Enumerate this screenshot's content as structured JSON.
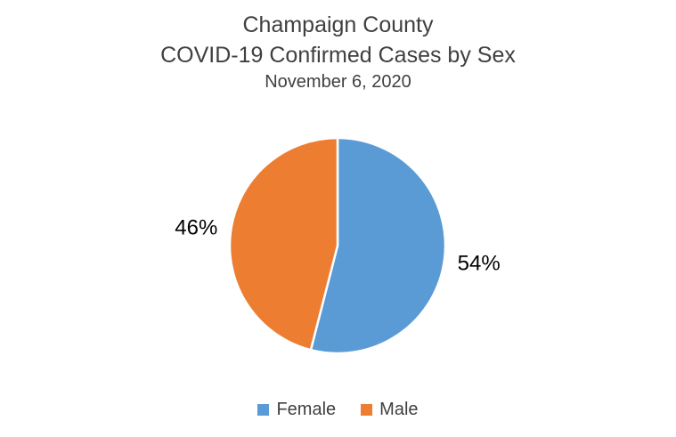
{
  "page": {
    "background_color": "#ffffff"
  },
  "chart_data": {
    "type": "pie",
    "title_lines": [
      "Champaign County",
      "COVID-19 Confirmed Cases by Sex"
    ],
    "subtitle": "November 6, 2020",
    "series": [
      {
        "name": "Female",
        "value": 54,
        "label": "54%",
        "color": "#5B9BD5"
      },
      {
        "name": "Male",
        "value": 46,
        "label": "46%",
        "color": "#ED7D31"
      }
    ],
    "start_angle_deg": 0,
    "direction": "clockwise",
    "label_position": "outside-end",
    "legend_position": "bottom",
    "slice_border_color": "#ffffff",
    "title_color": "#404040",
    "legend_text_color": "#404040",
    "data_label_color": "#000000"
  }
}
